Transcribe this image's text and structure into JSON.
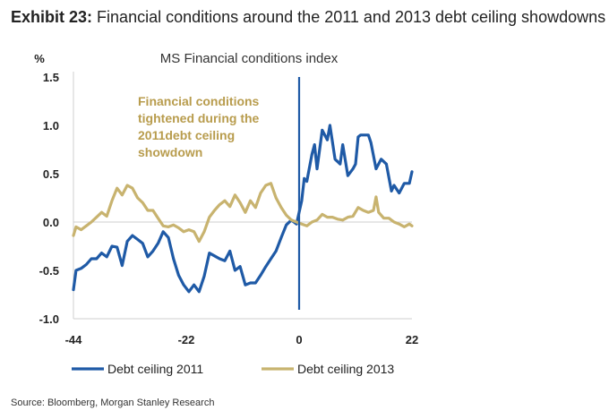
{
  "exhibit": {
    "label": "Exhibit 23:",
    "title": "Financial conditions around the 2011 and 2013 debt ceiling showdowns"
  },
  "source": "Source: Bloomberg, Morgan Stanley Research",
  "chart_data": {
    "type": "line",
    "title": "MS Financial conditions index",
    "ylabel": "%",
    "xlabel": "",
    "xlim": [
      -44,
      22
    ],
    "ylim": [
      -1.0,
      1.5
    ],
    "x_ticks": [
      "-44",
      "-22",
      "0",
      "22"
    ],
    "y_ticks": [
      "1.5",
      "1.0",
      "0.5",
      "0.0",
      "-0.5",
      "-1.0"
    ],
    "grid": false,
    "legend_position": "bottom",
    "vertical_marker_x": 0,
    "annotation": [
      "Financial conditions",
      "tightened during the",
      "2011debt ceiling",
      "showdown"
    ],
    "colors": {
      "series_2011": "#1f5aa6",
      "series_2013": "#c8b36f",
      "marker": "#1f5aa6"
    },
    "series": [
      {
        "name": "Debt ceiling 2011",
        "color": "#1f5aa6",
        "points": [
          [
            -44,
            -0.7
          ],
          [
            -43.5,
            -0.5
          ],
          [
            -42.5,
            -0.48
          ],
          [
            -41.5,
            -0.44
          ],
          [
            -40.5,
            -0.38
          ],
          [
            -39.5,
            -0.38
          ],
          [
            -38.5,
            -0.32
          ],
          [
            -37.5,
            -0.36
          ],
          [
            -36.5,
            -0.25
          ],
          [
            -35.5,
            -0.26
          ],
          [
            -34.5,
            -0.45
          ],
          [
            -33.5,
            -0.2
          ],
          [
            -32.5,
            -0.14
          ],
          [
            -31.5,
            -0.18
          ],
          [
            -30.5,
            -0.22
          ],
          [
            -29.5,
            -0.36
          ],
          [
            -28.5,
            -0.3
          ],
          [
            -27.5,
            -0.22
          ],
          [
            -26.5,
            -0.1
          ],
          [
            -25.5,
            -0.16
          ],
          [
            -24.5,
            -0.38
          ],
          [
            -23.5,
            -0.55
          ],
          [
            -22.5,
            -0.65
          ],
          [
            -21.5,
            -0.72
          ],
          [
            -20.5,
            -0.65
          ],
          [
            -19.5,
            -0.72
          ],
          [
            -18.5,
            -0.56
          ],
          [
            -17.5,
            -0.32
          ],
          [
            -16.5,
            -0.35
          ],
          [
            -15.5,
            -0.38
          ],
          [
            -14.5,
            -0.4
          ],
          [
            -13.5,
            -0.3
          ],
          [
            -12.5,
            -0.5
          ],
          [
            -11.5,
            -0.46
          ],
          [
            -10.5,
            -0.65
          ],
          [
            -9.5,
            -0.63
          ],
          [
            -8.5,
            -0.63
          ],
          [
            -7.5,
            -0.55
          ],
          [
            -6.5,
            -0.46
          ],
          [
            -5.5,
            -0.38
          ],
          [
            -4.5,
            -0.3
          ],
          [
            -3.5,
            -0.16
          ],
          [
            -2.5,
            -0.03
          ],
          [
            -1.5,
            0.02
          ],
          [
            -0.5,
            -0.02
          ],
          [
            0.5,
            0.22
          ],
          [
            1.0,
            0.45
          ],
          [
            1.5,
            0.42
          ],
          [
            2.5,
            0.7
          ],
          [
            3.0,
            0.8
          ],
          [
            3.5,
            0.55
          ],
          [
            4.5,
            0.95
          ],
          [
            5.5,
            0.85
          ],
          [
            6.0,
            1.0
          ],
          [
            7.0,
            0.65
          ],
          [
            8.0,
            0.6
          ],
          [
            8.5,
            0.8
          ],
          [
            9.5,
            0.48
          ],
          [
            10.5,
            0.55
          ],
          [
            11.0,
            0.6
          ],
          [
            11.5,
            0.88
          ],
          [
            12.0,
            0.9
          ],
          [
            13.5,
            0.9
          ],
          [
            14.0,
            0.82
          ],
          [
            15.0,
            0.55
          ],
          [
            16.0,
            0.65
          ],
          [
            17.0,
            0.6
          ],
          [
            18.0,
            0.32
          ],
          [
            18.5,
            0.38
          ],
          [
            19.5,
            0.3
          ],
          [
            20.5,
            0.4
          ],
          [
            21.5,
            0.4
          ],
          [
            22,
            0.52
          ]
        ]
      },
      {
        "name": "Debt ceiling 2013",
        "color": "#c8b36f",
        "points": [
          [
            -44,
            -0.14
          ],
          [
            -43.5,
            -0.05
          ],
          [
            -42.5,
            -0.08
          ],
          [
            -41.5,
            -0.04
          ],
          [
            -40.5,
            0.0
          ],
          [
            -39.5,
            0.05
          ],
          [
            -38.5,
            0.1
          ],
          [
            -37.5,
            0.06
          ],
          [
            -36.5,
            0.22
          ],
          [
            -35.5,
            0.35
          ],
          [
            -34.5,
            0.28
          ],
          [
            -33.5,
            0.38
          ],
          [
            -32.5,
            0.35
          ],
          [
            -31.5,
            0.25
          ],
          [
            -30.5,
            0.2
          ],
          [
            -29.5,
            0.12
          ],
          [
            -28.5,
            0.12
          ],
          [
            -27.5,
            0.04
          ],
          [
            -26.5,
            -0.04
          ],
          [
            -25.5,
            -0.05
          ],
          [
            -24.5,
            -0.03
          ],
          [
            -23.5,
            -0.06
          ],
          [
            -22.5,
            -0.1
          ],
          [
            -21.5,
            -0.08
          ],
          [
            -20.5,
            -0.1
          ],
          [
            -19.5,
            -0.2
          ],
          [
            -18.5,
            -0.1
          ],
          [
            -17.5,
            0.05
          ],
          [
            -16.5,
            0.12
          ],
          [
            -15.5,
            0.18
          ],
          [
            -14.5,
            0.22
          ],
          [
            -13.5,
            0.16
          ],
          [
            -12.5,
            0.28
          ],
          [
            -11.5,
            0.2
          ],
          [
            -10.5,
            0.1
          ],
          [
            -9.5,
            0.22
          ],
          [
            -8.5,
            0.15
          ],
          [
            -7.5,
            0.3
          ],
          [
            -6.5,
            0.38
          ],
          [
            -5.5,
            0.4
          ],
          [
            -4.5,
            0.25
          ],
          [
            -3.5,
            0.15
          ],
          [
            -2.5,
            0.07
          ],
          [
            -1.5,
            0.02
          ],
          [
            -0.5,
            0.0
          ],
          [
            0.5,
            -0.02
          ],
          [
            1.5,
            -0.04
          ],
          [
            2.5,
            0.0
          ],
          [
            3.5,
            0.02
          ],
          [
            4.5,
            0.08
          ],
          [
            5.5,
            0.05
          ],
          [
            6.5,
            0.05
          ],
          [
            7.5,
            0.03
          ],
          [
            8.5,
            0.02
          ],
          [
            9.5,
            0.05
          ],
          [
            10.5,
            0.06
          ],
          [
            11.5,
            0.15
          ],
          [
            12.5,
            0.12
          ],
          [
            13.5,
            0.1
          ],
          [
            14.5,
            0.12
          ],
          [
            15.0,
            0.26
          ],
          [
            15.5,
            0.1
          ],
          [
            16.5,
            0.04
          ],
          [
            17.5,
            0.04
          ],
          [
            18.5,
            0.0
          ],
          [
            19.5,
            -0.02
          ],
          [
            20.5,
            -0.05
          ],
          [
            21.5,
            -0.02
          ],
          [
            22,
            -0.04
          ]
        ]
      }
    ]
  }
}
